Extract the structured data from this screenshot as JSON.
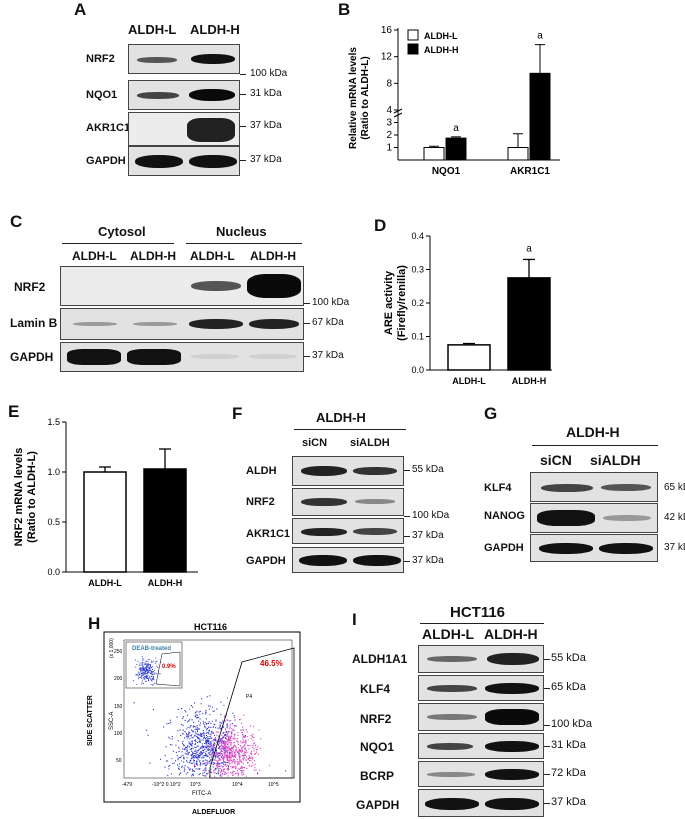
{
  "panels": {
    "a": "A",
    "b": "B",
    "c": "C",
    "d": "D",
    "e": "E",
    "f": "F",
    "g": "G",
    "h": "H",
    "i": "I"
  },
  "panel_a": {
    "cols": [
      "ALDH-L",
      "ALDH-H"
    ],
    "rows": [
      "NRF2",
      "NQO1",
      "AKR1C1",
      "GAPDH"
    ],
    "kda": [
      "100 kDa",
      "31 kDa",
      "37 kDa",
      "37 kDa"
    ]
  },
  "panel_c": {
    "groups": [
      "Cytosol",
      "Nucleus"
    ],
    "cols": [
      "ALDH-L",
      "ALDH-H",
      "ALDH-L",
      "ALDH-H"
    ],
    "rows": [
      "NRF2",
      "Lamin B",
      "GAPDH"
    ],
    "kda": [
      "100 kDa",
      "67 kDa",
      "37 kDa"
    ]
  },
  "panel_f": {
    "title": "ALDH-H",
    "cols": [
      "siCN",
      "siALDH"
    ],
    "rows": [
      "ALDH",
      "NRF2",
      "AKR1C1",
      "GAPDH"
    ],
    "kda": [
      "55 kDa",
      "100 kDa",
      "37 kDa",
      "37 kDa"
    ]
  },
  "panel_g": {
    "title": "ALDH-H",
    "cols": [
      "siCN",
      "siALDH"
    ],
    "rows": [
      "KLF4",
      "NANOG",
      "GAPDH"
    ],
    "kda": [
      "65 kDa",
      "42 kDa",
      "37 kDa"
    ]
  },
  "panel_h": {
    "title": "HCT116",
    "inset_label": "DEAB-treated",
    "inset_pct": "0.9%",
    "gate_pct": "46.5%",
    "gate_name": "P4",
    "ylabel": "SIDE SCATTER",
    "xlabel": "ALDEFLUOR",
    "inner_ylabel": "SSC-A",
    "inner_xlabel": "FITC-A",
    "inner_yunit": "(x 1,000)",
    "yticks": [
      "50",
      "100",
      "150",
      "200",
      "250"
    ],
    "xticks": [
      "-479",
      "-10^2 0 10^2",
      "10^3",
      "10^4",
      "10^5"
    ]
  },
  "panel_i": {
    "title": "HCT116",
    "cols": [
      "ALDH-L",
      "ALDH-H"
    ],
    "rows": [
      "ALDH1A1",
      "KLF4",
      "NRF2",
      "NQO1",
      "BCRP",
      "GAPDH"
    ],
    "kda": [
      "55 kDa",
      "65 kDa",
      "100 kDa",
      "31 kDa",
      "72 kDa",
      "37 kDa"
    ]
  },
  "chart_data": [
    {
      "id": "B",
      "type": "bar",
      "categories": [
        "NQO1",
        "AKR1C1"
      ],
      "series": [
        {
          "name": "ALDH-L",
          "values": [
            1.0,
            1.0
          ],
          "errors": [
            0.1,
            1.1
          ],
          "color": "#ffffff"
        },
        {
          "name": "ALDH-H",
          "values": [
            1.75,
            9.5
          ],
          "errors": [
            0.1,
            4.3
          ],
          "color": "#000000"
        }
      ],
      "ylabel": "Relative mRNA levels\n(Ratio to ALDH-L)",
      "yticks": [
        "1",
        "2",
        "3",
        "4",
        "8",
        "12",
        "16"
      ],
      "annotations": [
        "a",
        "a"
      ],
      "legend_position": "top-left"
    },
    {
      "id": "D",
      "type": "bar",
      "categories": [
        "ALDH-L",
        "ALDH-H"
      ],
      "values": [
        0.075,
        0.275
      ],
      "errors": [
        0.004,
        0.055
      ],
      "colors": [
        "#ffffff",
        "#000000"
      ],
      "ylabel": "ARE activity\n(Firefly/renilla)",
      "ylim": [
        0,
        0.4
      ],
      "yticks": [
        "0.0",
        "0.1",
        "0.2",
        "0.3",
        "0.4"
      ],
      "annotations": [
        "",
        "a"
      ]
    },
    {
      "id": "E",
      "type": "bar",
      "categories": [
        "ALDH-L",
        "ALDH-H"
      ],
      "values": [
        1.0,
        1.03
      ],
      "errors": [
        0.05,
        0.2
      ],
      "colors": [
        "#ffffff",
        "#000000"
      ],
      "ylabel": "NRF2 mRNA levels\n(Ratio to ALDH-L)",
      "ylim": [
        0,
        1.5
      ],
      "yticks": [
        "0.0",
        "0.5",
        "1.0",
        "1.5"
      ]
    }
  ]
}
